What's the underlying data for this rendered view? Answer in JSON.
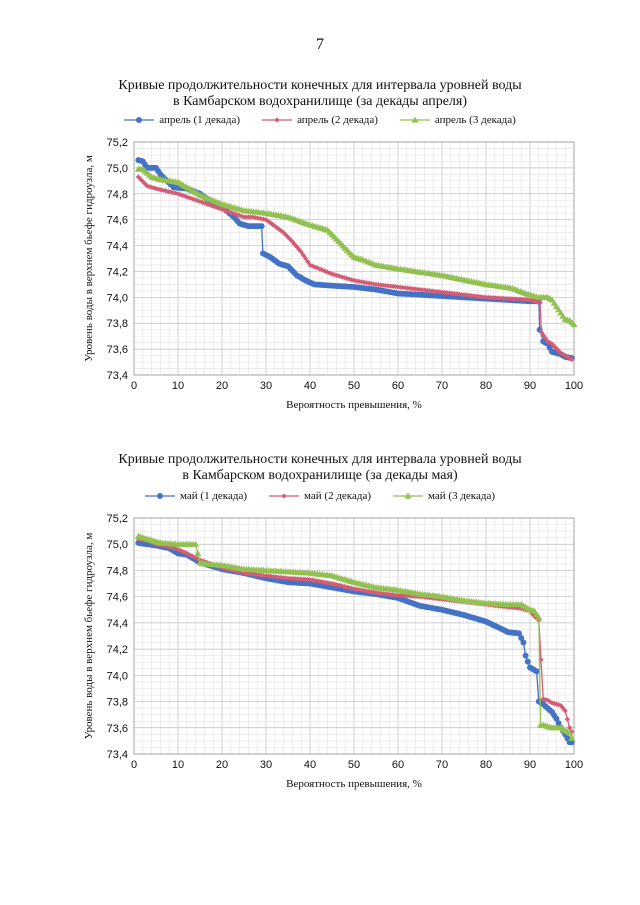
{
  "page": {
    "number": "7"
  },
  "chart_data": [
    {
      "type": "line",
      "title_line1": "Кривые продолжительности конечных для интервала уровней воды",
      "title_line2": "в Камбарском водохранилище (за декады апреля)",
      "xlabel": "Вероятность превышения, %",
      "ylabel": "Уровень воды  в верхнем бьефе гидроузла, м",
      "xlim": [
        0,
        100
      ],
      "ylim": [
        73.4,
        75.2
      ],
      "xticks": [
        0,
        10,
        20,
        30,
        40,
        50,
        60,
        70,
        80,
        90,
        100
      ],
      "yticks": [
        "73,4",
        "73,6",
        "73,8",
        "74,0",
        "74,2",
        "74,4",
        "74,6",
        "74,8",
        "75,0",
        "75,2"
      ],
      "grid": true,
      "legend_position": "top",
      "series": [
        {
          "name": "апрель (1 декада)",
          "color": "#4472C4",
          "marker": "circle",
          "x": [
            1,
            2,
            3,
            5,
            6,
            9,
            12,
            15,
            17,
            20,
            23,
            24,
            26,
            29,
            29.3,
            31,
            33,
            35,
            37,
            39,
            41,
            45,
            50,
            55,
            60,
            70,
            80,
            85,
            90,
            92,
            92.2,
            93,
            94,
            95,
            97,
            98,
            99.5
          ],
          "y": [
            75.06,
            75.05,
            75.0,
            75.0,
            74.95,
            74.85,
            74.84,
            74.8,
            74.75,
            74.7,
            74.61,
            74.57,
            74.55,
            74.55,
            74.34,
            74.31,
            74.26,
            74.24,
            74.17,
            74.13,
            74.1,
            74.09,
            74.08,
            74.06,
            74.03,
            74.01,
            73.99,
            73.98,
            73.97,
            73.97,
            73.75,
            73.66,
            73.64,
            73.58,
            73.56,
            73.54,
            73.53
          ]
        },
        {
          "name": "апрель (2 декада)",
          "color": "#D55C75",
          "marker": "diamond",
          "x": [
            1,
            3,
            5,
            10,
            15,
            20,
            25,
            27,
            30,
            32,
            34,
            36,
            38,
            40,
            45,
            50,
            55,
            60,
            70,
            80,
            90,
            92.3,
            92.6,
            94,
            95,
            97,
            99.5
          ],
          "y": [
            74.93,
            74.86,
            74.84,
            74.8,
            74.74,
            74.68,
            74.62,
            74.62,
            74.6,
            74.55,
            74.5,
            74.43,
            74.35,
            74.25,
            74.18,
            74.13,
            74.1,
            74.08,
            74.04,
            74.0,
            73.98,
            73.96,
            73.73,
            73.66,
            73.64,
            73.57,
            73.52
          ]
        },
        {
          "name": "апрель (3 декада)",
          "color": "#92C051",
          "marker": "triangle",
          "x": [
            1,
            2,
            4,
            6,
            10,
            15,
            20,
            25,
            30,
            35,
            40,
            44,
            46,
            48,
            50,
            52,
            55,
            60,
            70,
            80,
            86,
            89,
            92,
            94,
            95,
            96,
            97,
            98,
            99,
            100
          ],
          "y": [
            74.99,
            74.99,
            74.93,
            74.91,
            74.89,
            74.79,
            74.72,
            74.67,
            74.65,
            74.62,
            74.56,
            74.52,
            74.45,
            74.38,
            74.31,
            74.29,
            74.25,
            74.22,
            74.17,
            74.1,
            74.07,
            74.03,
            74.0,
            74.0,
            73.98,
            73.93,
            73.88,
            73.83,
            73.82,
            73.79
          ]
        }
      ]
    },
    {
      "type": "line",
      "title_line1": "Кривые продолжительности конечных для интервала уровней воды",
      "title_line2": "в Камбарском водохранилище (за декады мая)",
      "xlabel": "Вероятность превышения, %",
      "ylabel": "Уровень воды  в верхнем бьефе гидроузла, м",
      "xlim": [
        0,
        100
      ],
      "ylim": [
        73.4,
        75.2
      ],
      "xticks": [
        0,
        10,
        20,
        30,
        40,
        50,
        60,
        70,
        80,
        90,
        100
      ],
      "yticks": [
        "73,4",
        "73,6",
        "73,8",
        "74,0",
        "74,2",
        "74,4",
        "74,6",
        "74,8",
        "75,0",
        "75,2"
      ],
      "grid": true,
      "legend_position": "top",
      "series": [
        {
          "name": "май (1 декада)",
          "color": "#4472C4",
          "marker": "circle",
          "x": [
            1,
            3,
            5,
            8,
            10,
            12,
            15,
            20,
            25,
            30,
            35,
            40,
            45,
            50,
            55,
            60,
            65,
            70,
            75,
            80,
            85,
            87.5,
            88.5,
            89,
            90,
            91.5,
            92,
            93,
            94,
            95,
            96,
            97,
            98,
            99,
            99.5
          ],
          "y": [
            75.01,
            75.0,
            74.99,
            74.97,
            74.93,
            74.92,
            74.86,
            74.81,
            74.78,
            74.74,
            74.71,
            74.7,
            74.67,
            74.64,
            74.62,
            74.59,
            74.53,
            74.5,
            74.46,
            74.41,
            74.33,
            74.32,
            74.25,
            74.15,
            74.06,
            74.03,
            73.8,
            73.78,
            73.75,
            73.72,
            73.67,
            73.6,
            73.55,
            73.49,
            73.49
          ]
        },
        {
          "name": "май (2 декада)",
          "color": "#D55C75",
          "marker": "diamond",
          "x": [
            1,
            3,
            5,
            8,
            10,
            12,
            15,
            20,
            25,
            30,
            35,
            40,
            45,
            50,
            55,
            60,
            65,
            70,
            75,
            80,
            85,
            88,
            90,
            91,
            92,
            93,
            94,
            95,
            96,
            97,
            98,
            99,
            99.5
          ],
          "y": [
            75.04,
            75.03,
            75.0,
            74.98,
            74.96,
            74.93,
            74.88,
            74.82,
            74.78,
            74.76,
            74.74,
            74.73,
            74.7,
            74.66,
            74.63,
            74.61,
            74.6,
            74.58,
            74.56,
            74.54,
            74.52,
            74.51,
            74.49,
            74.45,
            74.42,
            73.82,
            73.81,
            73.79,
            73.78,
            73.77,
            73.73,
            73.6,
            73.57
          ]
        },
        {
          "name": "май (3 декада)",
          "color": "#92C051",
          "marker": "triangle",
          "x": [
            1,
            2,
            4,
            6,
            10,
            14,
            15,
            16,
            20,
            25,
            30,
            35,
            40,
            45,
            50,
            55,
            60,
            65,
            70,
            75,
            80,
            85,
            88,
            90,
            91,
            92,
            92.4,
            93,
            95,
            97,
            98,
            99,
            99.5
          ],
          "y": [
            75.06,
            75.05,
            75.03,
            75.01,
            75.0,
            75.0,
            74.86,
            74.85,
            74.84,
            74.81,
            74.8,
            74.79,
            74.78,
            74.76,
            74.71,
            74.67,
            74.65,
            74.62,
            74.6,
            74.57,
            74.55,
            74.54,
            74.54,
            74.5,
            74.49,
            74.44,
            73.62,
            73.62,
            73.6,
            73.6,
            73.58,
            73.56,
            73.52
          ]
        }
      ]
    }
  ]
}
